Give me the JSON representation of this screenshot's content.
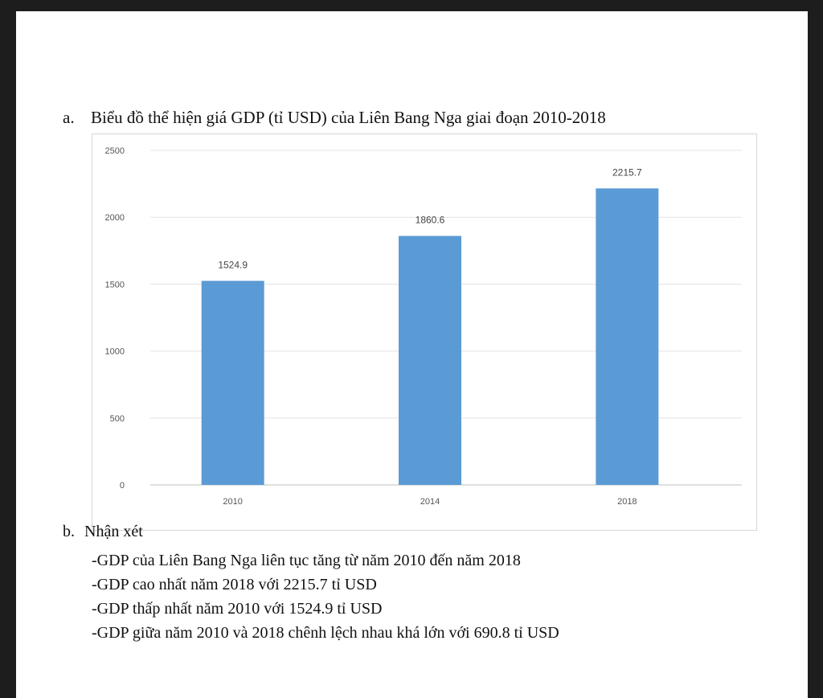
{
  "heading_a": {
    "marker": "a.",
    "text": "Biểu đồ thể hiện giá GDP (tỉ USD) của Liên Bang Nga giai đoạn 2010-2018"
  },
  "chart_data": {
    "type": "bar",
    "categories": [
      "2010",
      "2014",
      "2018"
    ],
    "values": [
      1524.9,
      1860.6,
      2215.7
    ],
    "data_labels": [
      "1524.9",
      "1860.6",
      "2215.7"
    ],
    "title": "",
    "xlabel": "",
    "ylabel": "",
    "ylim": [
      0,
      2500
    ],
    "yticks": [
      "0",
      "500",
      "1000",
      "1500",
      "2000",
      "2500"
    ],
    "grid": true,
    "legend": "none",
    "bar_color": "#5b9bd5"
  },
  "section_b": {
    "marker": "b.",
    "title": "Nhận xét",
    "remarks": [
      "-GDP của Liên Bang Nga liên tục tăng từ năm 2010 đến năm 2018",
      "-GDP cao nhất năm 2018 với 2215.7 tỉ USD",
      "-GDP thấp nhất năm 2010 với 1524.9 tỉ USD",
      "-GDP giữa năm 2010 và 2018 chênh lệch nhau khá lớn với 690.8 tỉ USD"
    ]
  }
}
